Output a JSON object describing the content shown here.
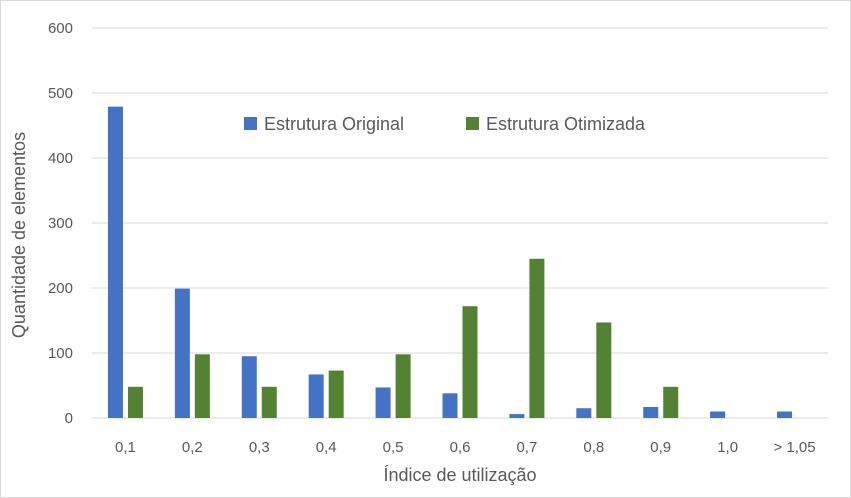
{
  "chart_data": {
    "type": "bar",
    "title": "",
    "xlabel": "Índice de utilização",
    "ylabel": "Quantidade de elementos",
    "categories": [
      "0,1",
      "0,2",
      "0,3",
      "0,4",
      "0,5",
      "0,6",
      "0,7",
      "0,8",
      "0,9",
      "1,0",
      "> 1,05"
    ],
    "series": [
      {
        "name": "Estrutura Original",
        "color": "#4472c4",
        "values": [
          479,
          199,
          95,
          67,
          47,
          38,
          6,
          15,
          17,
          10,
          10
        ]
      },
      {
        "name": "Estrutura Otimizada",
        "color": "#548235",
        "values": [
          48,
          98,
          48,
          73,
          98,
          172,
          245,
          147,
          48,
          0,
          0
        ]
      }
    ],
    "ylim": [
      0,
      600
    ],
    "yticks": [
      0,
      100,
      200,
      300,
      400,
      500,
      600
    ],
    "grid": true,
    "legend_position": "top-center",
    "gridline_color": "#d9d9d9",
    "text_color": "#595959"
  }
}
